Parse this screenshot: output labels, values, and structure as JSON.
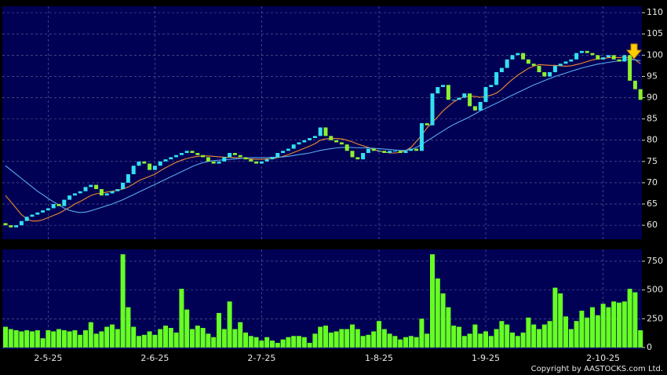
{
  "chart_data": [
    {
      "type": "candlestick",
      "open": [
        60.5,
        60,
        59.5,
        60,
        61,
        62,
        62.5,
        63,
        63.5,
        64,
        65,
        64.5,
        66,
        67,
        67.5,
        68,
        69,
        69.5,
        68.5,
        67,
        67.5,
        68,
        68.5,
        70,
        72,
        74,
        75,
        74.5,
        73,
        74,
        75,
        75.5,
        76,
        76.5,
        77,
        77.5,
        77,
        76.5,
        76,
        75,
        74.5,
        75,
        76,
        77,
        76.5,
        76,
        75.5,
        75,
        74.5,
        75,
        75.5,
        76,
        77,
        77.5,
        78,
        79,
        79.5,
        80,
        80.5,
        81,
        83,
        81,
        80,
        79.5,
        79,
        77.5,
        76,
        75.5,
        77,
        78,
        77.5,
        77.5,
        77,
        77.5,
        77.5,
        77,
        77.5,
        78,
        77.5,
        84,
        83.5,
        91,
        92.5,
        93,
        89.5,
        89.5,
        90,
        91,
        88,
        87,
        89,
        92.5,
        93,
        96,
        97,
        99,
        100,
        100.5,
        99,
        98,
        97.5,
        96,
        95,
        96,
        97.5,
        98,
        98.5,
        99,
        100.5,
        101,
        100.5,
        100,
        99,
        99.5,
        100,
        99,
        98.5,
        100,
        94,
        92
      ],
      "close": [
        60,
        59.5,
        60,
        61,
        62,
        62.5,
        63,
        63.5,
        64,
        65,
        64.5,
        66,
        67,
        67.5,
        68,
        69,
        69.5,
        68.5,
        67,
        67.5,
        68,
        68.5,
        70,
        72,
        74,
        75,
        74.5,
        73,
        74,
        75,
        75.5,
        76,
        76.5,
        77,
        77.5,
        77,
        76.5,
        76,
        75,
        74.5,
        75,
        76,
        77,
        76.5,
        76,
        75.5,
        75,
        74.5,
        75,
        75.5,
        76,
        77,
        77.5,
        78,
        79,
        79.5,
        80,
        80.5,
        81,
        83,
        81,
        80,
        79.5,
        79,
        77.5,
        76,
        75.5,
        77,
        78,
        77.5,
        77.5,
        77,
        77.5,
        77.5,
        77,
        77.5,
        78,
        77.5,
        84,
        83.5,
        91,
        92.5,
        93,
        89.5,
        89.5,
        90,
        91,
        88,
        87,
        89,
        92.5,
        93,
        96,
        97,
        99,
        100,
        100.5,
        99,
        98,
        97.5,
        96,
        95,
        96,
        97.5,
        98,
        98.5,
        99,
        100.5,
        101,
        100.5,
        100,
        99,
        99.5,
        100,
        99,
        98.5,
        100,
        94,
        92,
        89.5
      ],
      "up_color": "#33e0f0",
      "down_color": "#8cf030",
      "series": [
        {
          "color": "#f08c30",
          "values": [
            67,
            65.5,
            64,
            62.5,
            61.5,
            61,
            61,
            61.3,
            61.8,
            62.3,
            62.8,
            63.5,
            64.2,
            65,
            65.6,
            66.3,
            67,
            67.4,
            67.6,
            67.8,
            68,
            68.2,
            68.5,
            69,
            69.7,
            70.5,
            71,
            71.5,
            72,
            72.8,
            73.5,
            74.2,
            74.8,
            75.3,
            75.7,
            76,
            76.2,
            76.3,
            76.3,
            76.2,
            76.1,
            76,
            76,
            75.9,
            75.8,
            75.7,
            75.6,
            75.5,
            75.5,
            75.6,
            75.7,
            75.9,
            76.2,
            76.6,
            77.1,
            77.6,
            78.1,
            78.6,
            79.2,
            80,
            80.3,
            80.4,
            80.4,
            80.3,
            80,
            79.6,
            79.1,
            78.7,
            78.3,
            77.8,
            77.5,
            77.2,
            77,
            77,
            77.1,
            77.6,
            78.3,
            79.7,
            81.2,
            82.9,
            84.2,
            85.5,
            86.9,
            88,
            89,
            89.7,
            90.2,
            90.4,
            90.3,
            90.1,
            90.3,
            90.6,
            91.1,
            92,
            93.2,
            94.3,
            95.3,
            96.1,
            96.9,
            97.4,
            97.8,
            97.7,
            97.6,
            97.6,
            97.5,
            97.4,
            97.5,
            97.8,
            98.1,
            98.5,
            98.9,
            99.1,
            99.2,
            99.4,
            99.5,
            99.4,
            99.6,
            99.3,
            98.9,
            98
          ]
        },
        {
          "color": "#5aaaf0",
          "values": [
            74,
            73,
            72,
            71,
            70,
            69,
            68,
            67.2,
            66.3,
            65.5,
            64.8,
            64,
            63.5,
            63.2,
            63,
            63.1,
            63.4,
            63.8,
            64.2,
            64.6,
            65,
            65.5,
            66,
            66.6,
            67.2,
            67.8,
            68.4,
            69,
            69.6,
            70.2,
            70.8,
            71.4,
            72,
            72.6,
            73.2,
            73.8,
            74.3,
            74.7,
            75,
            75.2,
            75.3,
            75.4,
            75.5,
            75.6,
            75.7,
            75.8,
            75.9,
            75.9,
            75.9,
            75.9,
            76,
            76,
            76.1,
            76.2,
            76.4,
            76.6,
            76.8,
            77,
            77.3,
            77.6,
            77.8,
            78,
            78.2,
            78.3,
            78.3,
            78.3,
            78.2,
            78.2,
            78.2,
            78.1,
            78,
            77.9,
            77.8,
            77.7,
            77.6,
            77.6,
            77.8,
            78.3,
            79,
            79.8,
            80.6,
            81.4,
            82.2,
            83,
            83.7,
            84.3,
            84.9,
            85.5,
            86.2,
            86.9,
            87.5,
            88.1,
            88.7,
            89.3,
            90,
            90.6,
            91.2,
            91.8,
            92.4,
            93,
            93.5,
            94,
            94.5,
            95,
            95.4,
            95.8,
            96.2,
            96.6,
            97,
            97.3,
            97.6,
            97.9,
            98.1,
            98.3,
            98.5,
            98.7,
            98.9,
            99,
            98.9,
            98.7
          ]
        }
      ],
      "ylim": [
        56.7,
        111.5
      ],
      "yticks": [
        60,
        65,
        70,
        75,
        80,
        85,
        90,
        95,
        100,
        105,
        110
      ],
      "grid": true
    },
    {
      "type": "bar",
      "color": "#66ff22",
      "categories": [
        null,
        null,
        null,
        null,
        null,
        null,
        null,
        null,
        "2-5-25",
        null,
        null,
        null,
        null,
        null,
        null,
        null,
        null,
        null,
        null,
        null,
        null,
        null,
        null,
        null,
        null,
        null,
        null,
        null,
        "2-6-25",
        null,
        null,
        null,
        null,
        null,
        null,
        null,
        null,
        null,
        null,
        null,
        null,
        null,
        null,
        null,
        null,
        null,
        null,
        null,
        "2-7-25",
        null,
        null,
        null,
        null,
        null,
        null,
        null,
        null,
        null,
        null,
        null,
        null,
        null,
        null,
        null,
        null,
        null,
        null,
        null,
        null,
        null,
        "1-8-25",
        null,
        null,
        null,
        null,
        null,
        null,
        null,
        null,
        null,
        null,
        null,
        null,
        null,
        null,
        null,
        null,
        null,
        null,
        null,
        "1-9-25",
        null,
        null,
        null,
        null,
        null,
        null,
        null,
        null,
        null,
        null,
        null,
        null,
        null,
        null,
        null,
        null,
        null,
        null,
        null,
        null,
        null,
        "2-10-25",
        null,
        null,
        null,
        null,
        null,
        null,
        null
      ],
      "values": [
        180,
        160,
        150,
        140,
        150,
        140,
        150,
        80,
        150,
        140,
        160,
        150,
        140,
        150,
        110,
        150,
        220,
        120,
        140,
        180,
        200,
        160,
        810,
        350,
        180,
        100,
        110,
        140,
        110,
        160,
        190,
        170,
        130,
        510,
        330,
        160,
        190,
        170,
        120,
        90,
        300,
        160,
        400,
        160,
        220,
        130,
        100,
        90,
        60,
        90,
        60,
        40,
        70,
        90,
        100,
        100,
        90,
        40,
        120,
        180,
        190,
        130,
        140,
        160,
        160,
        200,
        160,
        100,
        110,
        140,
        230,
        160,
        120,
        100,
        70,
        90,
        100,
        90,
        250,
        120,
        810,
        600,
        470,
        350,
        190,
        180,
        100,
        120,
        200,
        120,
        140,
        100,
        160,
        230,
        200,
        130,
        100,
        130,
        260,
        200,
        160,
        200,
        230,
        520,
        470,
        270,
        160,
        230,
        320,
        260,
        350,
        280,
        380,
        350,
        400,
        390,
        400,
        510,
        480,
        150
      ],
      "ylim": [
        -14,
        852
      ],
      "yticks": [
        0,
        250,
        500,
        750
      ],
      "grid": true
    }
  ],
  "copyright": "Copyright by AASTOCKS.com Ltd."
}
